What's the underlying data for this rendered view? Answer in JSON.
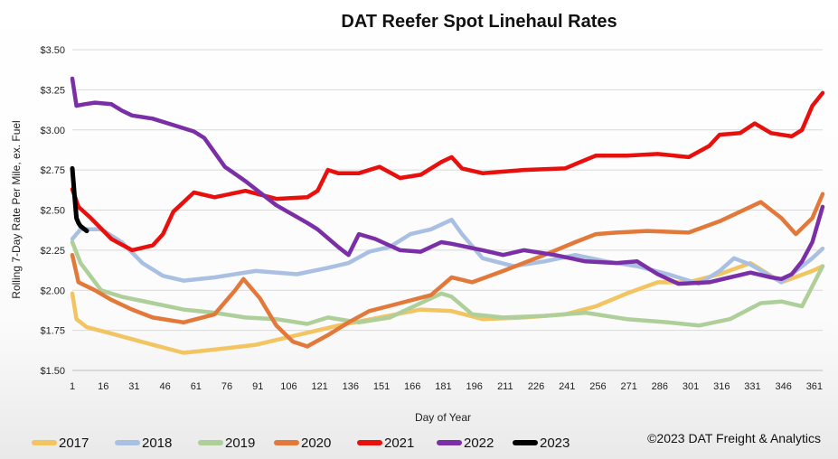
{
  "chart_data": {
    "type": "line",
    "title": "DAT Reefer Spot Linehaul Rates",
    "xlabel": "Day of Year",
    "ylabel": "Rolling 7-Day Rate Per Mile, ex. Fuel",
    "xlim": [
      1,
      365
    ],
    "ylim": [
      1.5,
      3.5
    ],
    "x_ticks": [
      "1",
      "16",
      "31",
      "46",
      "61",
      "76",
      "91",
      "106",
      "121",
      "136",
      "151",
      "166",
      "181",
      "196",
      "211",
      "226",
      "241",
      "256",
      "271",
      "286",
      "301",
      "316",
      "331",
      "346",
      "361"
    ],
    "y_ticks": [
      "$1.50",
      "$1.75",
      "$2.00",
      "$2.25",
      "$2.50",
      "$2.75",
      "$3.00",
      "$3.25",
      "$3.50"
    ],
    "copyright": "©2023 DAT Freight & Analytics",
    "series": [
      {
        "name": "2017",
        "color": "#f2c462",
        "x": [
          1,
          3,
          8,
          20,
          40,
          55,
          70,
          90,
          110,
          130,
          150,
          170,
          185,
          200,
          220,
          240,
          255,
          270,
          285,
          300,
          315,
          330,
          345,
          360,
          365
        ],
        "values": [
          1.98,
          1.82,
          1.77,
          1.73,
          1.66,
          1.61,
          1.63,
          1.66,
          1.72,
          1.78,
          1.83,
          1.88,
          1.87,
          1.82,
          1.83,
          1.85,
          1.9,
          1.98,
          2.05,
          2.05,
          2.1,
          2.17,
          2.05,
          2.12,
          2.15
        ]
      },
      {
        "name": "2018",
        "color": "#a9c0e2",
        "x": [
          1,
          5,
          15,
          25,
          35,
          45,
          55,
          70,
          90,
          110,
          125,
          135,
          145,
          155,
          165,
          175,
          185,
          190,
          200,
          215,
          230,
          245,
          260,
          275,
          290,
          305,
          315,
          322,
          330,
          345,
          360,
          365
        ],
        "values": [
          2.32,
          2.38,
          2.38,
          2.3,
          2.17,
          2.09,
          2.06,
          2.08,
          2.12,
          2.1,
          2.14,
          2.17,
          2.24,
          2.27,
          2.35,
          2.38,
          2.44,
          2.35,
          2.2,
          2.15,
          2.18,
          2.22,
          2.18,
          2.15,
          2.1,
          2.04,
          2.12,
          2.2,
          2.16,
          2.05,
          2.2,
          2.26
        ]
      },
      {
        "name": "2019",
        "color": "#afcf9a",
        "x": [
          1,
          5,
          15,
          25,
          40,
          55,
          70,
          85,
          100,
          115,
          125,
          140,
          155,
          170,
          180,
          185,
          195,
          210,
          230,
          250,
          270,
          290,
          305,
          320,
          335,
          345,
          355,
          365
        ],
        "values": [
          2.3,
          2.17,
          2.0,
          1.96,
          1.92,
          1.88,
          1.86,
          1.83,
          1.82,
          1.79,
          1.83,
          1.8,
          1.83,
          1.92,
          1.98,
          1.96,
          1.85,
          1.83,
          1.84,
          1.86,
          1.82,
          1.8,
          1.78,
          1.82,
          1.92,
          1.93,
          1.9,
          2.15
        ]
      },
      {
        "name": "2020",
        "color": "#e2793a",
        "x": [
          1,
          4,
          12,
          20,
          30,
          40,
          55,
          70,
          80,
          84,
          92,
          100,
          108,
          115,
          125,
          135,
          145,
          160,
          175,
          185,
          195,
          210,
          230,
          245,
          255,
          265,
          280,
          300,
          315,
          330,
          335,
          345,
          352,
          360,
          365
        ],
        "values": [
          2.22,
          2.05,
          2.0,
          1.94,
          1.88,
          1.83,
          1.8,
          1.85,
          2.0,
          2.07,
          1.95,
          1.78,
          1.68,
          1.65,
          1.72,
          1.8,
          1.87,
          1.92,
          1.97,
          2.08,
          2.05,
          2.12,
          2.22,
          2.3,
          2.35,
          2.36,
          2.37,
          2.36,
          2.43,
          2.52,
          2.55,
          2.45,
          2.35,
          2.45,
          2.6
        ]
      },
      {
        "name": "2021",
        "color": "#e8100d",
        "x": [
          1,
          4,
          10,
          20,
          30,
          40,
          45,
          50,
          60,
          70,
          85,
          100,
          115,
          120,
          125,
          130,
          140,
          150,
          160,
          170,
          180,
          185,
          190,
          200,
          220,
          240,
          255,
          270,
          285,
          300,
          310,
          315,
          325,
          332,
          340,
          350,
          355,
          360,
          365
        ],
        "values": [
          2.63,
          2.52,
          2.45,
          2.32,
          2.25,
          2.28,
          2.35,
          2.49,
          2.61,
          2.58,
          2.62,
          2.57,
          2.58,
          2.62,
          2.75,
          2.73,
          2.73,
          2.77,
          2.7,
          2.72,
          2.8,
          2.83,
          2.76,
          2.73,
          2.75,
          2.76,
          2.84,
          2.84,
          2.85,
          2.83,
          2.9,
          2.97,
          2.98,
          3.04,
          2.98,
          2.96,
          3.0,
          3.15,
          3.23
        ]
      },
      {
        "name": "2022",
        "color": "#7b2fa6",
        "x": [
          1,
          3,
          7,
          12,
          20,
          25,
          30,
          40,
          50,
          60,
          65,
          75,
          85,
          100,
          115,
          120,
          130,
          135,
          140,
          148,
          160,
          170,
          180,
          185,
          200,
          210,
          220,
          235,
          250,
          265,
          275,
          285,
          295,
          310,
          320,
          330,
          340,
          345,
          350,
          355,
          360,
          365
        ],
        "values": [
          3.32,
          3.15,
          3.16,
          3.17,
          3.16,
          3.12,
          3.09,
          3.07,
          3.03,
          2.99,
          2.95,
          2.77,
          2.68,
          2.53,
          2.42,
          2.38,
          2.27,
          2.22,
          2.35,
          2.32,
          2.25,
          2.24,
          2.3,
          2.29,
          2.25,
          2.22,
          2.25,
          2.22,
          2.18,
          2.17,
          2.18,
          2.1,
          2.04,
          2.05,
          2.08,
          2.11,
          2.08,
          2.07,
          2.1,
          2.18,
          2.3,
          2.52
        ]
      },
      {
        "name": "2023",
        "color": "#000000",
        "x": [
          1,
          2,
          3,
          4,
          5,
          6,
          7,
          8
        ],
        "values": [
          2.76,
          2.6,
          2.45,
          2.42,
          2.4,
          2.39,
          2.38,
          2.37
        ]
      }
    ]
  }
}
